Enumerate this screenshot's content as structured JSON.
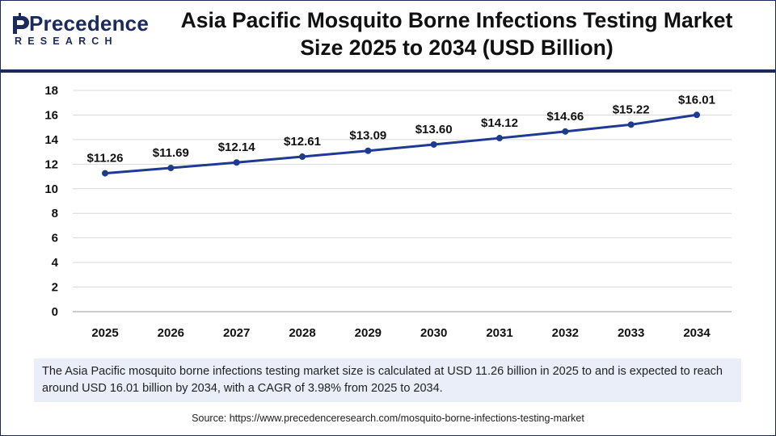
{
  "brand": {
    "name": "Precedence",
    "sub": "RESEARCH",
    "color": "#1b2a5c"
  },
  "title_line1": "Asia Pacific Mosquito Borne Infections Testing Market",
  "title_line2": "Size 2025 to 2034 (USD Billion)",
  "chart_data": {
    "type": "line",
    "x": [
      "2025",
      "2026",
      "2027",
      "2028",
      "2029",
      "2030",
      "2031",
      "2032",
      "2033",
      "2034"
    ],
    "series": [
      {
        "values": [
          11.26,
          11.69,
          12.14,
          12.61,
          13.09,
          13.6,
          14.12,
          14.66,
          15.22,
          16.01
        ],
        "labels": [
          "$11.26",
          "$11.69",
          "$12.14",
          "$12.61",
          "$13.09",
          "$13.60",
          "$14.12",
          "$14.66",
          "$15.22",
          "$16.01"
        ],
        "color": "#1f3a93"
      }
    ],
    "yticks": [
      "0",
      "2",
      "4",
      "6",
      "8",
      "10",
      "12",
      "14",
      "16",
      "18"
    ],
    "ylim": [
      0,
      18
    ],
    "grid": true,
    "legend": "none"
  },
  "caption": "The Asia Pacific mosquito borne infections testing market size is calculated at USD 11.26 billion in 2025 to and is expected to reach around USD 16.01 billion by 2034, with a CAGR of 3.98% from 2025 to 2034.",
  "source": "Source: https://www.precedenceresearch.com/mosquito-borne-infections-testing-market"
}
